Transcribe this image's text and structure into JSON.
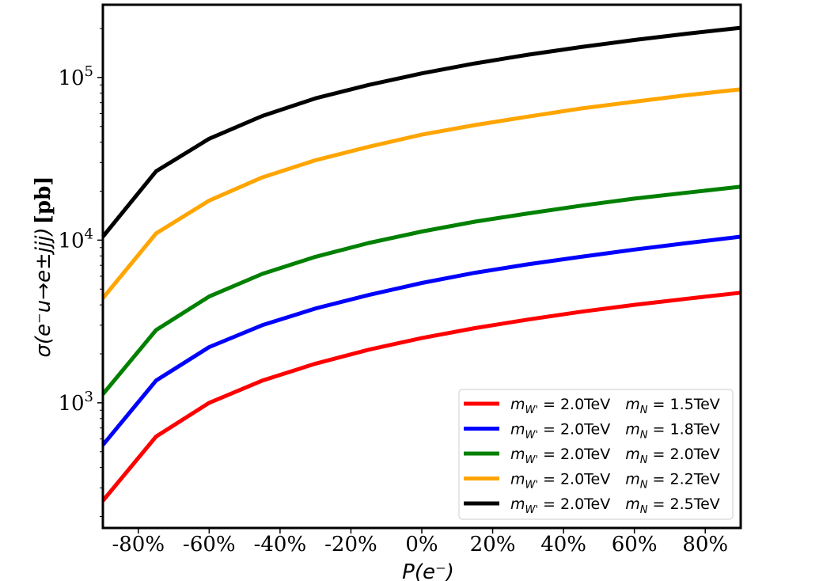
{
  "chart_data": {
    "type": "line",
    "title": "",
    "xlabel": "P(e⁻)",
    "ylabel_main": "σ(e⁻u→e±jjj)",
    "ylabel_unit": "[pb]",
    "yscale": "log",
    "xlim": [
      -90,
      90
    ],
    "ylim": [
      170,
      280000
    ],
    "grid": false,
    "legend_position": "lower-right",
    "x": [
      -90,
      -75,
      -60,
      -45,
      -30,
      -15,
      0,
      15,
      30,
      45,
      60,
      75,
      90
    ],
    "x_ticks": [
      -80,
      -60,
      -40,
      -20,
      0,
      20,
      40,
      60,
      80
    ],
    "x_tick_labels": [
      "-80%",
      "-60%",
      "-40%",
      "-20%",
      "0%",
      "20%",
      "40%",
      "60%",
      "80%"
    ],
    "y_ticks": [
      {
        "value": 1000,
        "base": "10",
        "exp": "3"
      },
      {
        "value": 10000,
        "base": "10",
        "exp": "4"
      },
      {
        "value": 100000,
        "base": "10",
        "exp": "5"
      }
    ],
    "series": [
      {
        "name": "mW'=2.0TeV mN=1.5TeV",
        "mw_value": "2.0TeV",
        "mn_value": "1.5TeV",
        "color": "#ff0000",
        "values": [
          250,
          620,
          1000,
          1370,
          1740,
          2120,
          2500,
          2880,
          3250,
          3630,
          4000,
          4370,
          4750
        ]
      },
      {
        "name": "mW'=2.0TeV mN=1.8TeV",
        "mw_value": "2.0TeV",
        "mn_value": "1.8TeV",
        "color": "#0000ff",
        "values": [
          550,
          1370,
          2200,
          3000,
          3800,
          4600,
          5450,
          6300,
          7100,
          7900,
          8750,
          9600,
          10500
        ]
      },
      {
        "name": "mW'=2.0TeV mN=2.0TeV",
        "mw_value": "2.0TeV",
        "mn_value": "2.0TeV",
        "color": "#008000",
        "values": [
          1130,
          2800,
          4500,
          6200,
          7900,
          9600,
          11300,
          13000,
          14600,
          16300,
          18000,
          19600,
          21300
        ]
      },
      {
        "name": "mW'=2.0TeV mN=2.2TeV",
        "mw_value": "2.0TeV",
        "mn_value": "2.2TeV",
        "color": "#ffa500",
        "values": [
          4400,
          11000,
          17500,
          24300,
          31000,
          37500,
          44500,
          51000,
          57500,
          64500,
          71000,
          78000,
          84500
        ]
      },
      {
        "name": "mW'=2.0TeV mN=2.5TeV",
        "mw_value": "2.0TeV",
        "mn_value": "2.5TeV",
        "color": "#000000",
        "values": [
          10500,
          26500,
          42000,
          58000,
          74500,
          90000,
          106000,
          122000,
          138000,
          154000,
          170000,
          186000,
          202000
        ]
      }
    ]
  }
}
